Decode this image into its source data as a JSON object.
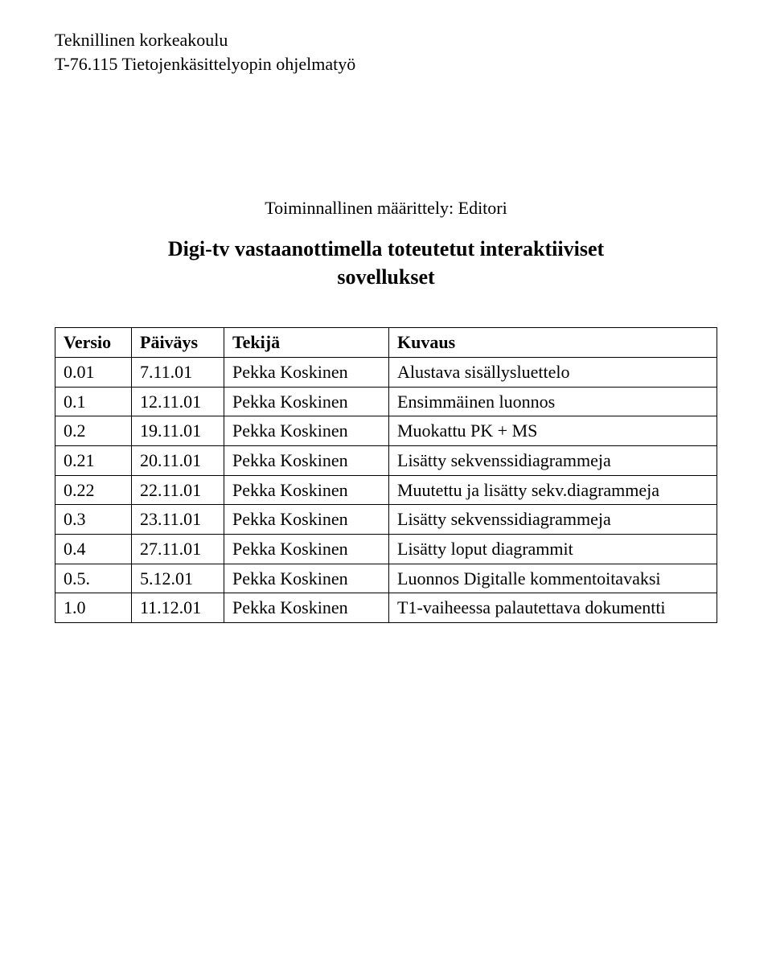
{
  "header": {
    "line1": "Teknillinen korkeakoulu",
    "line2": "T-76.115 Tietojenkäsittelyopin ohjelmatyö"
  },
  "title": {
    "subtitle": "Toiminnallinen määrittely: Editori",
    "main_line1": "Digi-tv vastaanottimella toteutetut interaktiiviset",
    "main_line2": "sovellukset"
  },
  "table": {
    "headers": {
      "versio": "Versio",
      "paivays": "Päiväys",
      "tekija": "Tekijä",
      "kuvaus": "Kuvaus"
    },
    "rows": [
      {
        "versio": "0.01",
        "paivays": "7.11.01",
        "tekija": "Pekka Koskinen",
        "kuvaus": "Alustava sisällysluettelo"
      },
      {
        "versio": "0.1",
        "paivays": "12.11.01",
        "tekija": "Pekka Koskinen",
        "kuvaus": "Ensimmäinen luonnos"
      },
      {
        "versio": "0.2",
        "paivays": "19.11.01",
        "tekija": "Pekka Koskinen",
        "kuvaus": "Muokattu PK + MS"
      },
      {
        "versio": "0.21",
        "paivays": "20.11.01",
        "tekija": "Pekka Koskinen",
        "kuvaus": "Lisätty sekvenssidiagrammeja"
      },
      {
        "versio": "0.22",
        "paivays": "22.11.01",
        "tekija": "Pekka Koskinen",
        "kuvaus": "Muutettu ja lisätty sekv.diagrammeja"
      },
      {
        "versio": "0.3",
        "paivays": "23.11.01",
        "tekija": "Pekka Koskinen",
        "kuvaus": "Lisätty sekvenssidiagrammeja"
      },
      {
        "versio": "0.4",
        "paivays": "27.11.01",
        "tekija": "Pekka Koskinen",
        "kuvaus": "Lisätty loput diagrammit"
      },
      {
        "versio": "0.5.",
        "paivays": "5.12.01",
        "tekija": "Pekka Koskinen",
        "kuvaus": "Luonnos Digitalle kommentoitavaksi"
      },
      {
        "versio": "1.0",
        "paivays": "11.12.01",
        "tekija": "Pekka Koskinen",
        "kuvaus": "T1-vaiheessa palautettava dokumentti"
      }
    ]
  }
}
